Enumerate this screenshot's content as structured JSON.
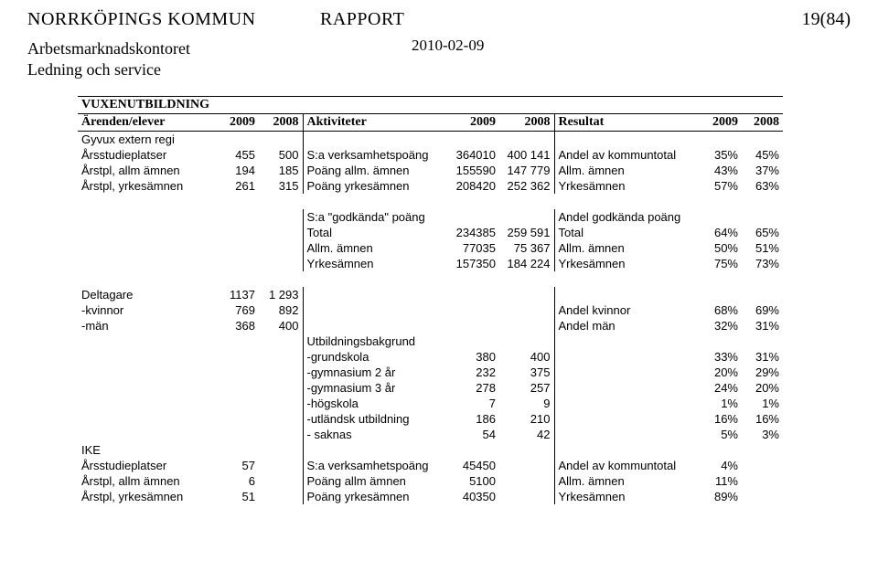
{
  "header": {
    "org": "NORRKÖPINGS KOMMUN",
    "report": "RAPPORT",
    "pagenum": "19(84)",
    "dept1": "Arbetsmarknadskontoret",
    "dept2": "Ledning och service",
    "date": "2010-02-09"
  },
  "table": {
    "section_title": "VUXENUTBILDNING",
    "colhdr": {
      "c1": "Ärenden/elever",
      "y1a": "2009",
      "y1b": "2008",
      "c2": "Aktiviteter",
      "y2a": "2009",
      "y2b": "2008",
      "c3": "Resultat",
      "y3a": "2009",
      "y3b": "2008"
    },
    "rows_top": [
      {
        "a": "Gyvux extern regi",
        "b": "",
        "c": "",
        "d": "",
        "e": "",
        "f": "",
        "g": "",
        "h": "",
        "i": ""
      },
      {
        "a": "Årsstudieplatser",
        "b": "455",
        "c": "500",
        "d": "S:a verksamhetspoäng",
        "e": "364010",
        "f": "400 141",
        "g": "Andel av kommuntotal",
        "h": "35%",
        "i": "45%"
      },
      {
        "a": "Årstpl, allm ämnen",
        "b": "194",
        "c": "185",
        "d": "Poäng allm. ämnen",
        "e": "155590",
        "f": "147 779",
        "g": "Allm. ämnen",
        "h": "43%",
        "i": "37%"
      },
      {
        "a": "Årstpl, yrkesämnen",
        "b": "261",
        "c": "315",
        "d": "Poäng yrkesämnen",
        "e": "208420",
        "f": "252 362",
        "g": "Yrkesämnen",
        "h": "57%",
        "i": "63%"
      }
    ],
    "rows_mid": [
      {
        "a": "",
        "b": "",
        "c": "",
        "d": "S:a \"godkända\" poäng",
        "e": "",
        "f": "",
        "g": "Andel godkända poäng",
        "h": "",
        "i": ""
      },
      {
        "a": "",
        "b": "",
        "c": "",
        "d": "Total",
        "e": "234385",
        "f": "259 591",
        "g": "Total",
        "h": "64%",
        "i": "65%"
      },
      {
        "a": "",
        "b": "",
        "c": "",
        "d": "Allm. ämnen",
        "e": "77035",
        "f": "75 367",
        "g": "Allm. ämnen",
        "h": "50%",
        "i": "51%"
      },
      {
        "a": "",
        "b": "",
        "c": "",
        "d": "Yrkesämnen",
        "e": "157350",
        "f": "184 224",
        "g": "Yrkesämnen",
        "h": "75%",
        "i": "73%"
      }
    ],
    "rows_delt": [
      {
        "a": "Deltagare",
        "b": "1137",
        "c": "1 293",
        "d": "",
        "e": "",
        "f": "",
        "g": "",
        "h": "",
        "i": ""
      },
      {
        "a": " -kvinnor",
        "b": "769",
        "c": "892",
        "d": "",
        "e": "",
        "f": "",
        "g": "Andel kvinnor",
        "h": "68%",
        "i": "69%"
      },
      {
        "a": " -män",
        "b": "368",
        "c": "400",
        "d": "",
        "e": "",
        "f": "",
        "g": "Andel män",
        "h": "32%",
        "i": "31%"
      }
    ],
    "rows_utb": [
      {
        "a": "",
        "b": "",
        "c": "",
        "d": "Utbildningsbakgrund",
        "e": "",
        "f": "",
        "g": "",
        "h": "",
        "i": ""
      },
      {
        "a": "",
        "b": "",
        "c": "",
        "d": " -grundskola",
        "e": "380",
        "f": "400",
        "g": "",
        "h": "33%",
        "i": "31%"
      },
      {
        "a": "",
        "b": "",
        "c": "",
        "d": " -gymnasium 2 år",
        "e": "232",
        "f": "375",
        "g": "",
        "h": "20%",
        "i": "29%"
      },
      {
        "a": "",
        "b": "",
        "c": "",
        "d": " -gymnasium 3 år",
        "e": "278",
        "f": "257",
        "g": "",
        "h": "24%",
        "i": "20%"
      },
      {
        "a": "",
        "b": "",
        "c": "",
        "d": " -högskola",
        "e": "7",
        "f": "9",
        "g": "",
        "h": "1%",
        "i": "1%"
      },
      {
        "a": "",
        "b": "",
        "c": "",
        "d": " -utländsk utbildning",
        "e": "186",
        "f": "210",
        "g": "",
        "h": "16%",
        "i": "16%"
      },
      {
        "a": "",
        "b": "",
        "c": "",
        "d": " - saknas",
        "e": "54",
        "f": "42",
        "g": "",
        "h": "5%",
        "i": "3%"
      }
    ],
    "rows_ike": [
      {
        "a": "IKE",
        "b": "",
        "c": "",
        "d": "",
        "e": "",
        "f": "",
        "g": "",
        "h": "",
        "i": ""
      },
      {
        "a": "Årsstudieplatser",
        "b": "57",
        "c": "",
        "d": "S:a verksamhetspoäng",
        "e": "45450",
        "f": "",
        "g": "Andel av kommuntotal",
        "h": "4%",
        "i": ""
      },
      {
        "a": "Årstpl, allm ämnen",
        "b": "6",
        "c": "",
        "d": "Poäng allm ämnen",
        "e": "5100",
        "f": "",
        "g": "Allm. ämnen",
        "h": "11%",
        "i": ""
      },
      {
        "a": "Årstpl, yrkesämnen",
        "b": "51",
        "c": "",
        "d": "Poäng yrkesämnen",
        "e": "40350",
        "f": "",
        "g": "Yrkesämnen",
        "h": "89%",
        "i": ""
      }
    ]
  }
}
